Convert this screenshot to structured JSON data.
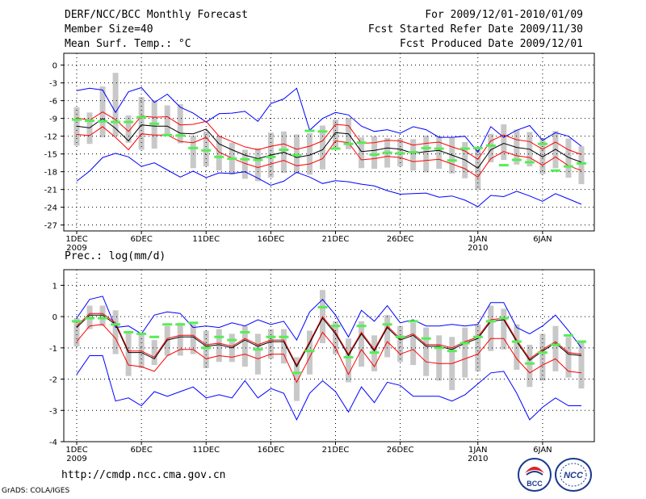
{
  "header": {
    "title": "DERF/NCC/BCC Monthly Forecast",
    "member_size": "Member Size=40",
    "variable": "Mean Surf. Temp.: °C",
    "period": "For 2009/12/01-2010/01/09",
    "refer_date": "Fcst Started Refer Date 2009/11/30",
    "produced_date": "Fcst Produced Date 2009/12/01"
  },
  "footer": {
    "url": "http://cmdp.ncc.cma.gov.cn",
    "credit": "GrADS: COLA/IGES"
  },
  "logos": {
    "bcc": "BCC",
    "ncc": "NCC"
  },
  "colors": {
    "mean": "#000000",
    "spread": "#ff0000",
    "envelope": "#0000ff",
    "box": "#c8c8c8",
    "obs": "#55ee55",
    "grid": "#000000"
  },
  "chart_data": [
    {
      "id": "temperature",
      "type": "line",
      "title": "Mean Surf. Temp.: °C",
      "ylim": [
        -28,
        2
      ],
      "yticks": [
        0,
        -3,
        -6,
        -9,
        -12,
        -15,
        -18,
        -21,
        -24,
        -27
      ],
      "x_days": 40,
      "xticks": [
        {
          "day": 1,
          "label": "1DEC",
          "year": "2009"
        },
        {
          "day": 6,
          "label": "6DEC",
          "year": ""
        },
        {
          "day": 11,
          "label": "11DEC",
          "year": ""
        },
        {
          "day": 16,
          "label": "16DEC",
          "year": ""
        },
        {
          "day": 21,
          "label": "21DEC",
          "year": ""
        },
        {
          "day": 26,
          "label": "26DEC",
          "year": ""
        },
        {
          "day": 32,
          "label": "1JAN",
          "year": "2010"
        },
        {
          "day": 37,
          "label": "6JAN",
          "year": ""
        }
      ],
      "series": [
        {
          "name": "ensemble-mean",
          "values": [
            -10.3,
            -10.6,
            -9,
            -10.7,
            -12.8,
            -10.1,
            -10.3,
            -10.3,
            -11.5,
            -11.6,
            -10.8,
            -13.3,
            -14.3,
            -15.2,
            -15.8,
            -15.2,
            -14.7,
            -15.6,
            -15.2,
            -14.3,
            -11.4,
            -11.6,
            -14.6,
            -14.4,
            -14.0,
            -14.2,
            -14.9,
            -14.6,
            -14.4,
            -15.2,
            -16,
            -17.4,
            -14.3,
            -13.2,
            -13.9,
            -14.2,
            -15.5,
            -14.2,
            -15.6,
            -16.4
          ]
        },
        {
          "name": "mean-plus-sd",
          "values": [
            -8.9,
            -9.3,
            -7.9,
            -9.2,
            -11.2,
            -8.6,
            -8.8,
            -8.7,
            -10.1,
            -10.0,
            -9.5,
            -12.0,
            -12.9,
            -13.8,
            -14.3,
            -13.7,
            -13.3,
            -14.2,
            -13.7,
            -12.8,
            -10.0,
            -10.2,
            -13.2,
            -13.1,
            -12.7,
            -12.8,
            -13.5,
            -13.2,
            -13.0,
            -13.8,
            -14.5,
            -15.9,
            -12.8,
            -11.8,
            -12.6,
            -12.9,
            -14.2,
            -13.0,
            -14.3,
            -15.1
          ]
        },
        {
          "name": "mean-minus-sd",
          "values": [
            -11.7,
            -11.9,
            -10.4,
            -12.2,
            -14.3,
            -11.6,
            -11.8,
            -11.8,
            -12.9,
            -13.1,
            -12.2,
            -14.7,
            -15.7,
            -16.6,
            -17.3,
            -16.7,
            -16.1,
            -17.0,
            -16.7,
            -15.8,
            -12.8,
            -13.1,
            -16.0,
            -15.8,
            -15.4,
            -15.6,
            -16.3,
            -16.1,
            -15.9,
            -16.7,
            -17.5,
            -18.9,
            -15.8,
            -14.6,
            -15.3,
            -15.6,
            -16.9,
            -15.5,
            -17.0,
            -17.8
          ]
        },
        {
          "name": "ensemble-max",
          "values": [
            -4.3,
            -3.9,
            -4.2,
            -8.0,
            -4.5,
            -3.8,
            -6.3,
            -4.9,
            -7.1,
            -8.1,
            -9.6,
            -8.2,
            -8.1,
            -7.8,
            -9.5,
            -6.5,
            -5.7,
            -3.9,
            -11.0,
            -9.0,
            -8.0,
            -8.4,
            -10.3,
            -11.2,
            -10.9,
            -11.5,
            -10.4,
            -10.9,
            -12.2,
            -12.2,
            -12.0,
            -14.7,
            -10.4,
            -12.2,
            -11.0,
            -10.2,
            -12.7,
            -11.4,
            -12.0,
            -13.7
          ]
        },
        {
          "name": "ensemble-min",
          "values": [
            -19.6,
            -17.9,
            -15.6,
            -14.9,
            -15.5,
            -17.1,
            -16.5,
            -17.7,
            -18.9,
            -17.9,
            -19.0,
            -18.2,
            -18.3,
            -18.0,
            -19.1,
            -20.3,
            -19.6,
            -18.1,
            -18.9,
            -20.0,
            -19.5,
            -19.7,
            -20.1,
            -20.4,
            -21.2,
            -21.8,
            -21.7,
            -21.6,
            -22.3,
            -22.1,
            -22.8,
            -23.9,
            -22.0,
            -22.2,
            -21.3,
            -22.1,
            -23.0,
            -21.7,
            -22.6,
            -23.5
          ]
        },
        {
          "name": "boxes",
          "low": [
            -13.6,
            -13.3,
            -12.2,
            -12.0,
            -13.1,
            -14.3,
            -14.1,
            -12.0,
            -13.2,
            -17.4,
            -17.1,
            -17.8,
            -18.5,
            -19.2,
            -19.6,
            -19.0,
            -18.2,
            -18.3,
            -18.5,
            -17.6,
            -13.9,
            -14.2,
            -17.4,
            -17.5,
            -17.3,
            -17.1,
            -17.8,
            -18.1,
            -17.5,
            -18.3,
            -19.1,
            -21.0,
            -16.4,
            -16.0,
            -16.8,
            -17.1,
            -18.4,
            -17.4,
            -19.0,
            -20.1
          ],
          "high": [
            -7.1,
            -8.0,
            -3.6,
            -1.3,
            -8.5,
            -5.4,
            -5.9,
            -6.8,
            -6.6,
            -11.9,
            -11.2,
            -11.9,
            -13.1,
            -14.3,
            -14.0,
            -11.4,
            -11.2,
            -11.7,
            -11.5,
            -10.2,
            -9.2,
            -8.9,
            -12.2,
            -12.0,
            -12.3,
            -12.4,
            -12.5,
            -11.9,
            -12.0,
            -12.3,
            -13.0,
            -13.9,
            -11.6,
            -10.0,
            -10.9,
            -11.3,
            -12.3,
            -11.1,
            -12.4,
            -13.7
          ]
        },
        {
          "name": "observation",
          "values": [
            -9.2,
            -9.4,
            -9.5,
            -9.6,
            -9.6,
            -8.8,
            -9.9,
            -11.8,
            -11.9,
            -14.0,
            -14.4,
            -15.5,
            -15.8,
            -15.9,
            -16.0,
            -15.5,
            -14.3,
            -15.2,
            -11.1,
            -11.2,
            -14.1,
            -13.3,
            -13.1,
            -15.1,
            -14.8,
            -14.9,
            -14.7,
            -14.0,
            -14.1,
            -16.1,
            -14.1,
            -14.0,
            -13.6,
            -16.9,
            -16.0,
            -16.4,
            -13.3,
            -17.8,
            -17.1,
            -16.6
          ]
        }
      ]
    },
    {
      "id": "precipitation",
      "type": "line",
      "title": "Prec.: log(mm/d)",
      "ylim": [
        -4,
        1.5
      ],
      "yticks": [
        1,
        0,
        -1,
        -2,
        -3,
        -4
      ],
      "x_days": 40,
      "xticks": [
        {
          "day": 1,
          "label": "1DEC",
          "year": "2009"
        },
        {
          "day": 6,
          "label": "6DEC",
          "year": ""
        },
        {
          "day": 11,
          "label": "11DEC",
          "year": ""
        },
        {
          "day": 16,
          "label": "16DEC",
          "year": ""
        },
        {
          "day": 21,
          "label": "21DEC",
          "year": ""
        },
        {
          "day": 26,
          "label": "26DEC",
          "year": ""
        },
        {
          "day": 32,
          "label": "1JAN",
          "year": "2010"
        },
        {
          "day": 37,
          "label": "6JAN",
          "year": ""
        }
      ],
      "series": [
        {
          "name": "ensemble-mean",
          "values": [
            -0.35,
            0.05,
            0.05,
            -0.25,
            -1.15,
            -1.15,
            -1.35,
            -0.75,
            -0.65,
            -0.65,
            -0.95,
            -0.9,
            -1.0,
            -0.75,
            -0.95,
            -0.8,
            -0.8,
            -1.6,
            -0.85,
            -0.05,
            -0.55,
            -1.25,
            -0.55,
            -1.1,
            -0.35,
            -0.75,
            -0.6,
            -0.95,
            -0.95,
            -1.05,
            -0.85,
            -0.7,
            -0.15,
            -0.1,
            -0.8,
            -1.4,
            -1.1,
            -0.85,
            -1.2,
            -1.25
          ]
        },
        {
          "name": "mean-plus-sd",
          "values": [
            -0.3,
            0.1,
            0.1,
            -0.2,
            -1.1,
            -1.1,
            -1.3,
            -0.7,
            -0.6,
            -0.6,
            -0.9,
            -0.85,
            -0.95,
            -0.7,
            -0.9,
            -0.75,
            -0.75,
            -1.55,
            -0.8,
            0.0,
            -0.5,
            -1.2,
            -0.5,
            -1.05,
            -0.3,
            -0.7,
            -0.55,
            -0.9,
            -0.9,
            -1.0,
            -0.8,
            -0.65,
            -0.1,
            -0.05,
            -0.75,
            -1.35,
            -1.05,
            -0.8,
            -1.15,
            -1.2
          ]
        },
        {
          "name": "mean-minus-sd",
          "values": [
            -0.8,
            -0.3,
            -0.25,
            -0.7,
            -1.55,
            -1.6,
            -1.75,
            -1.25,
            -1.05,
            -1.05,
            -1.35,
            -1.25,
            -1.3,
            -1.2,
            -1.35,
            -1.2,
            -1.2,
            -2.1,
            -1.3,
            -0.5,
            -1.0,
            -1.85,
            -1.05,
            -1.6,
            -0.8,
            -1.2,
            -1.05,
            -1.45,
            -1.5,
            -1.5,
            -1.35,
            -1.2,
            -0.7,
            -0.7,
            -1.35,
            -1.8,
            -1.55,
            -1.35,
            -1.75,
            -1.8
          ]
        },
        {
          "name": "ensemble-max",
          "values": [
            -0.05,
            0.55,
            0.65,
            -0.35,
            -0.3,
            -0.55,
            0.05,
            0.15,
            0.1,
            -0.35,
            -0.3,
            -0.35,
            -0.2,
            -0.3,
            -0.1,
            -0.25,
            -0.15,
            -0.75,
            0.15,
            0.55,
            0.05,
            -0.65,
            0.2,
            -0.15,
            0.35,
            -0.2,
            -0.1,
            -0.3,
            -0.3,
            -0.25,
            -0.3,
            -0.25,
            0.45,
            0.45,
            -0.35,
            -0.55,
            -0.3,
            0.05,
            -0.45,
            -1.0
          ]
        },
        {
          "name": "ensemble-min",
          "values": [
            -1.85,
            -1.25,
            -1.25,
            -2.7,
            -2.6,
            -2.85,
            -2.4,
            -2.55,
            -2.4,
            -2.25,
            -2.6,
            -2.5,
            -2.6,
            -2.05,
            -2.6,
            -2.3,
            -2.45,
            -3.3,
            -2.45,
            -2.05,
            -2.4,
            -3.05,
            -2.25,
            -2.75,
            -2.1,
            -2.2,
            -2.55,
            -2.55,
            -2.55,
            -2.7,
            -2.5,
            -2.15,
            -1.8,
            -1.75,
            -2.45,
            -3.3,
            -2.9,
            -2.6,
            -2.85,
            -2.85
          ]
        },
        {
          "name": "boxes",
          "low": [
            -0.95,
            -0.4,
            -0.3,
            -1.2,
            -1.9,
            -1.65,
            -1.55,
            -1.25,
            -1.25,
            -1.2,
            -1.65,
            -1.45,
            -1.45,
            -1.6,
            -1.85,
            -1.35,
            -1.5,
            -2.7,
            -1.85,
            -0.85,
            -1.2,
            -2.1,
            -1.6,
            -1.75,
            -1.3,
            -1.45,
            -1.55,
            -1.9,
            -2.05,
            -2.35,
            -1.95,
            -1.75,
            -1.1,
            -1.05,
            -1.7,
            -2.25,
            -2.05,
            -1.75,
            -1.95,
            -2.3
          ]
        },
        {
          "name": "boxes-high",
          "values": [
            -0.05,
            0.35,
            0.35,
            0.2,
            -0.5,
            -0.55,
            -0.75,
            -0.3,
            -0.2,
            -0.25,
            -0.45,
            -0.4,
            -0.55,
            -0.3,
            -0.55,
            -0.4,
            -0.4,
            -1.3,
            -0.45,
            0.85,
            -0.15,
            -0.7,
            -0.15,
            -0.6,
            0.05,
            -0.3,
            -0.2,
            -0.35,
            -0.6,
            -0.65,
            -0.35,
            -0.25,
            0.35,
            0.25,
            -0.25,
            -0.9,
            -0.55,
            -0.3,
            -0.65,
            -0.8
          ]
        },
        {
          "name": "observation",
          "values": [
            -0.15,
            -0.05,
            -0.05,
            -0.25,
            -0.5,
            -0.55,
            -0.65,
            -0.25,
            -0.25,
            -0.2,
            -1.0,
            -0.65,
            -0.75,
            -0.5,
            -1.05,
            -0.65,
            -0.65,
            -1.8,
            -1.1,
            0.3,
            -0.3,
            -1.3,
            -0.3,
            -1.15,
            -0.25,
            -0.65,
            -0.15,
            -0.7,
            -1.0,
            -1.1,
            -0.85,
            -0.65,
            -0.15,
            -0.05,
            -0.8,
            -1.5,
            -1.15,
            -0.9,
            -0.6,
            -0.8
          ]
        }
      ]
    }
  ]
}
